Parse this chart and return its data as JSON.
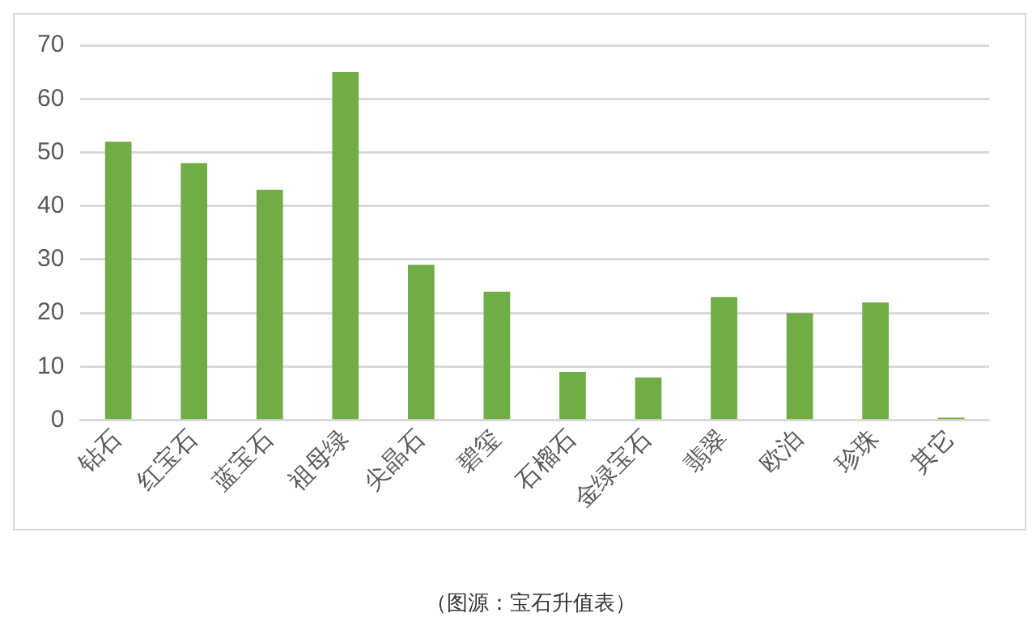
{
  "chart_data": {
    "type": "bar",
    "categories": [
      "钻石",
      "红宝石",
      "蓝宝石",
      "祖母绿",
      "尖晶石",
      "碧玺",
      "石榴石",
      "金绿宝石",
      "翡翠",
      "欧泊",
      "珍珠",
      "其它"
    ],
    "values": [
      52,
      48,
      43,
      65,
      29,
      24,
      9,
      8,
      23,
      20,
      22,
      0.5
    ],
    "color": "#70ad47",
    "ylim": [
      0,
      70
    ],
    "yticks": [
      0,
      10,
      20,
      30,
      40,
      50,
      60,
      70
    ],
    "grid": "y",
    "annotations": [
      "（图源：宝石升值表）"
    ]
  }
}
